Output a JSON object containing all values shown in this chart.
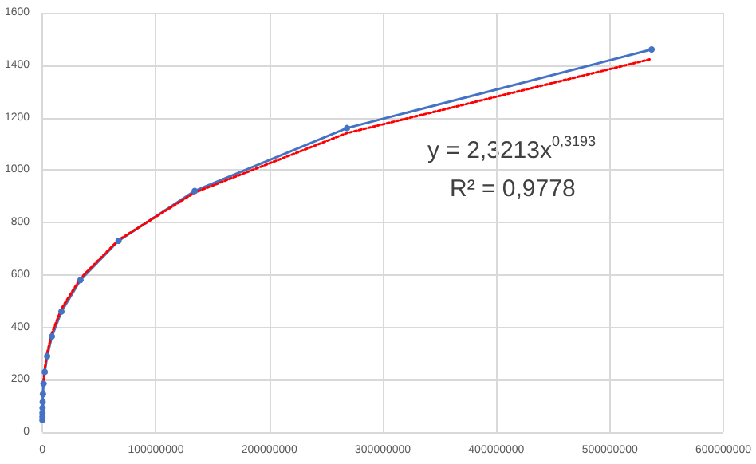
{
  "chart_data": {
    "type": "line",
    "marker": "circle",
    "grid": true,
    "line_style": "solid",
    "xlim": [
      0,
      600000000
    ],
    "xticks": [
      0,
      100000000,
      200000000,
      300000000,
      400000000,
      500000000,
      600000000
    ],
    "ylim": [
      0,
      1600
    ],
    "yticks": [
      0,
      200,
      400,
      600,
      800,
      1000,
      1200,
      1400,
      1600
    ],
    "series": [
      {
        "color": "#4472c4",
        "x": [
          16384,
          32768,
          65536,
          131072,
          262144,
          524288,
          1048576,
          2097152,
          4194304,
          8388608,
          16777216,
          33554432,
          67108864,
          134217728,
          268435456,
          536870912
        ],
        "values": [
          46,
          58,
          73,
          92,
          115,
          145,
          185,
          230,
          290,
          365,
          460,
          580,
          730,
          920,
          1160,
          1460
        ]
      },
      {
        "type": "line",
        "color": "#ff0000",
        "line_style": "dotted",
        "marker": "none",
        "x": [
          1048576,
          2097152,
          4194304,
          8388608,
          16777216,
          33554432,
          67108864,
          134217728,
          268435456,
          536870912
        ],
        "values": [
          194,
          242,
          302,
          377,
          471,
          587,
          733,
          914,
          1141,
          1424
        ]
      }
    ],
    "annotations": [
      "y = 2,3213x$^{0,3193}$",
      "R² = 0,9778"
    ]
  }
}
